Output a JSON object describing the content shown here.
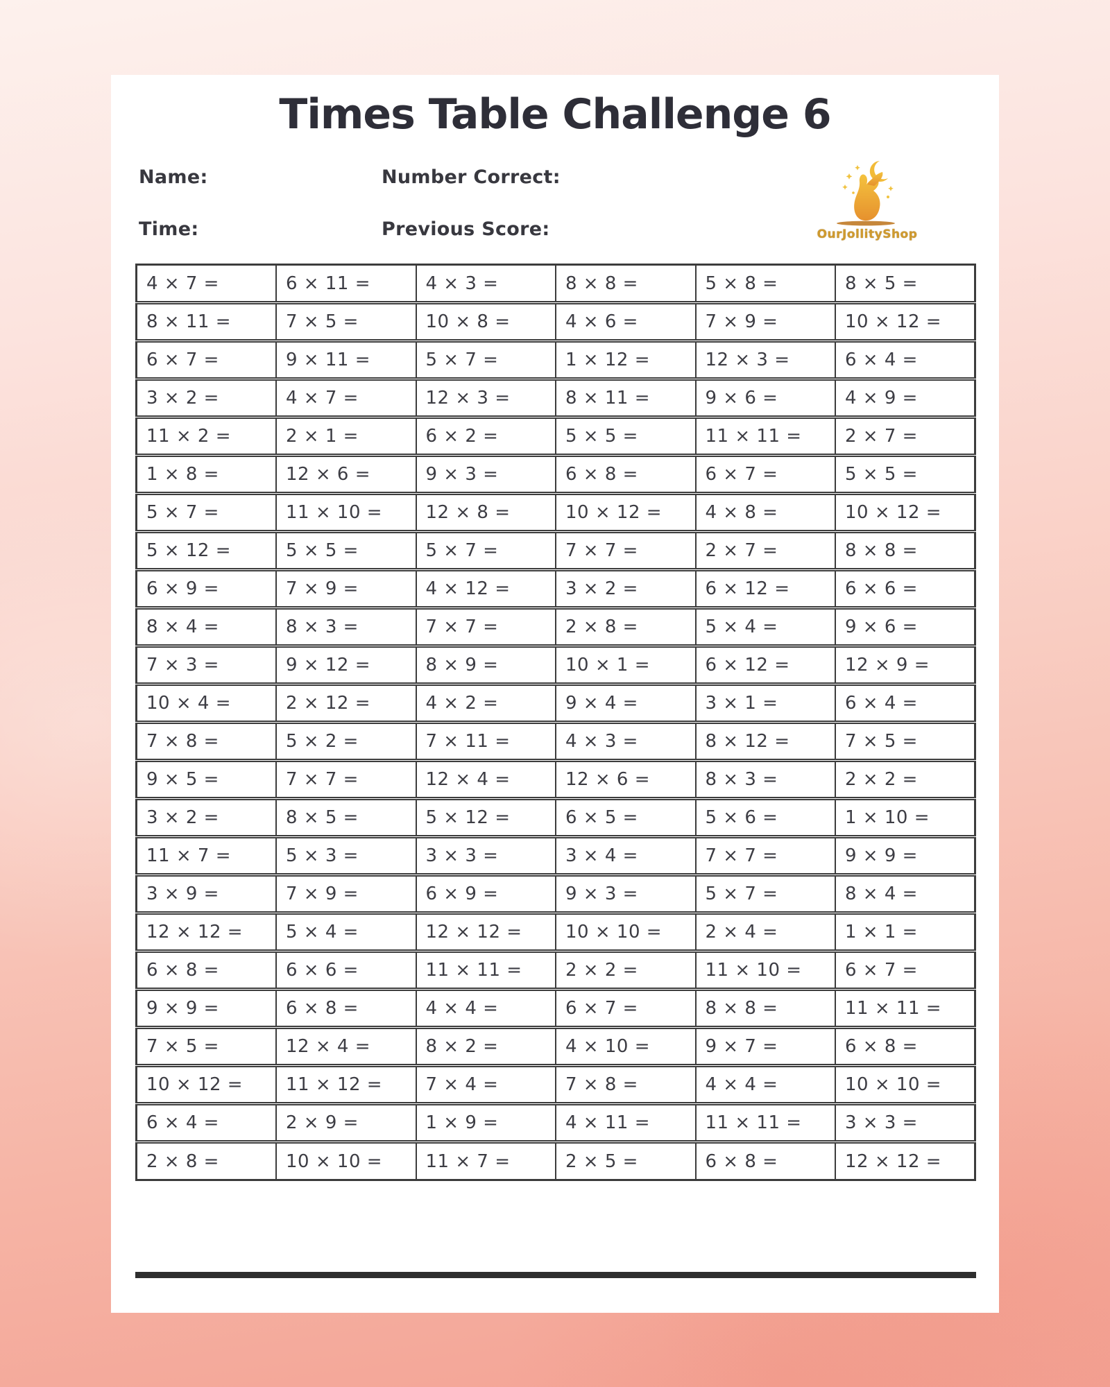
{
  "document": {
    "title": "Times Table Challenge 6",
    "header": {
      "name_label": "Name:",
      "number_correct_label": "Number Correct:",
      "time_label": "Time:",
      "previous_score_label": "Previous Score:"
    },
    "logo": {
      "brand": "OurJollityShop",
      "icon": "bunny-moon-sparkles-icon"
    },
    "colors": {
      "backdrop_top": "#fdf1ed",
      "backdrop_bottom": "#f3a294",
      "page_bg": "#ffffff",
      "ink": "#2e2e38",
      "grid_line": "#3c3c3c",
      "logo_gold": "#efb23a",
      "logo_text_gold": "#cf9a2e"
    }
  },
  "table": {
    "columns": 6,
    "rows": [
      [
        "4 × 7 =",
        "6 × 11 =",
        "4 × 3 =",
        "8 × 8 =",
        "5 × 8 =",
        "8 × 5 ="
      ],
      [
        "8 × 11 =",
        "7 × 5 =",
        "10 × 8 =",
        "4 × 6 =",
        "7 × 9 =",
        "10 × 12 ="
      ],
      [
        "6 × 7 =",
        "9 × 11 =",
        "5 × 7 =",
        "1 × 12 =",
        "12 × 3 =",
        "6 × 4 ="
      ],
      [
        "3 × 2 =",
        "4 × 7 =",
        "12 × 3 =",
        "8 × 11 =",
        "9 × 6 =",
        "4 × 9 ="
      ],
      [
        "11 × 2 =",
        "2 × 1 =",
        "6 × 2 =",
        "5 × 5 =",
        "11 × 11 =",
        "2 × 7 ="
      ],
      [
        "1 × 8 =",
        "12 × 6 =",
        "9 × 3 =",
        "6 × 8 =",
        "6 × 7 =",
        "5 × 5 ="
      ],
      [
        "5 × 7 =",
        "11 × 10 =",
        "12 × 8 =",
        "10 × 12 =",
        "4 × 8 =",
        "10 × 12 ="
      ],
      [
        "5 × 12 =",
        "5 × 5 =",
        "5 × 7 =",
        "7 × 7 =",
        "2 × 7 =",
        "8 × 8 ="
      ],
      [
        "6 × 9 =",
        "7 × 9 =",
        "4 × 12 =",
        "3 × 2 =",
        "6 × 12 =",
        "6 × 6 ="
      ],
      [
        "8 × 4 =",
        "8 × 3 =",
        "7 × 7 =",
        "2 × 8 =",
        "5 × 4 =",
        "9 × 6 ="
      ],
      [
        "7 × 3 =",
        "9 × 12 =",
        "8 × 9 =",
        "10 × 1 =",
        "6 × 12 =",
        "12 × 9 ="
      ],
      [
        "10 × 4 =",
        "2 × 12 =",
        "4 × 2 =",
        "9 × 4 =",
        "3 × 1 =",
        "6 × 4 ="
      ],
      [
        "7 × 8 =",
        "5 × 2 =",
        "7 × 11 =",
        "4 × 3 =",
        "8 × 12 =",
        "7 × 5 ="
      ],
      [
        "9 × 5 =",
        "7 × 7 =",
        "12 × 4 =",
        "12 × 6 =",
        "8 × 3 =",
        "2 × 2 ="
      ],
      [
        "3 × 2 =",
        "8 × 5 =",
        "5 × 12 =",
        "6 × 5 =",
        "5 × 6 =",
        "1 × 10 ="
      ],
      [
        "11 × 7 =",
        "5 × 3 =",
        "3 × 3 =",
        "3 × 4 =",
        "7 × 7 =",
        "9 × 9 ="
      ],
      [
        "3 × 9 =",
        "7 × 9 =",
        "6 × 9 =",
        "9 × 3 =",
        "5 × 7 =",
        "8 × 4 ="
      ],
      [
        "12 × 12 =",
        "5 × 4 =",
        "12 × 12 =",
        "10 × 10 =",
        "2 × 4 =",
        "1 × 1 ="
      ],
      [
        "6 × 8 =",
        "6 × 6 =",
        "11 × 11 =",
        "2 × 2 =",
        "11 × 10 =",
        "6 × 7 ="
      ],
      [
        "9 × 9 =",
        "6 × 8 =",
        "4 × 4 =",
        "6 × 7 =",
        "8 × 8 =",
        "11 × 11 ="
      ],
      [
        "7 × 5 =",
        "12 × 4 =",
        "8 × 2 =",
        "4 × 10 =",
        "9 × 7 =",
        "6 × 8 ="
      ],
      [
        "10 × 12 =",
        "11 × 12 =",
        "7 × 4 =",
        "7 × 8 =",
        "4 × 4 =",
        "10 × 10 ="
      ],
      [
        "6 × 4 =",
        "2 × 9 =",
        "1 × 9 =",
        "4 × 11 =",
        "11 × 11 =",
        "3 × 3 ="
      ],
      [
        "2 × 8 =",
        "10 × 10 =",
        "11 × 7 =",
        "2 × 5 =",
        "6 × 8 =",
        "12 × 12 ="
      ]
    ]
  }
}
